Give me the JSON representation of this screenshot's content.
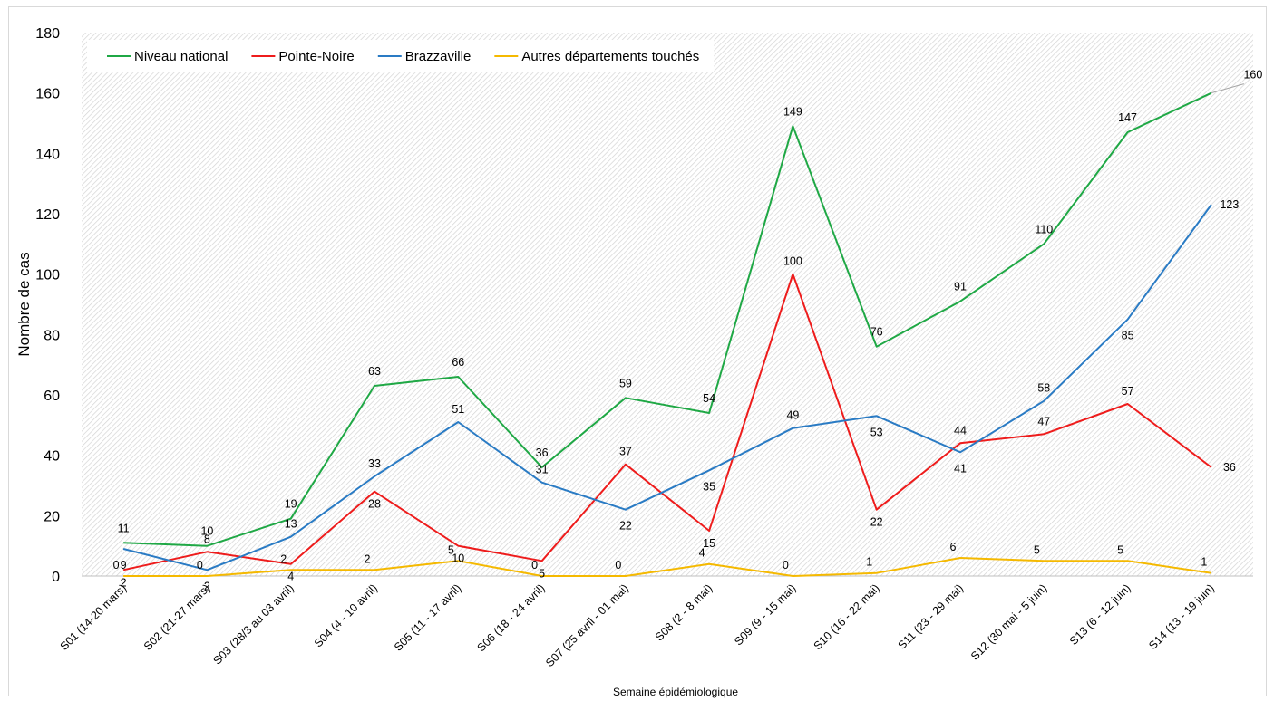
{
  "chart_data": {
    "type": "line",
    "xlabel": "Semaine épidémiologique",
    "ylabel": "Nombre de cas",
    "ylim": [
      0,
      180
    ],
    "yticks": [
      0,
      20,
      40,
      60,
      80,
      100,
      120,
      140,
      160,
      180
    ],
    "grid": false,
    "legend_position": "top-left",
    "categories": [
      "S01 (14-20 mars)",
      "S02 (21-27 mars)",
      "S03 (28/3 au 03 avril)",
      "S04 (4 - 10 avril)",
      "S05 (11 - 17 avril)",
      "S06 (18 - 24 avril)",
      "S07 (25 avril - 01 mai)",
      "S08 (2 - 8 mai)",
      "S09 (9 - 15 mai)",
      "S10 (16 - 22 mai)",
      "S11 (23 - 29 mai)",
      "S12 (30 mai - 5 juin)",
      "S13 (6 - 12 juin)",
      "S14 (13 - 19 juin)"
    ],
    "series": [
      {
        "name": "Niveau national",
        "color": "#1fa845",
        "values": [
          11,
          10,
          19,
          63,
          66,
          36,
          59,
          54,
          149,
          76,
          91,
          110,
          147,
          160
        ]
      },
      {
        "name": "Pointe-Noire",
        "color": "#ee1c1c",
        "values": [
          2,
          8,
          4,
          28,
          10,
          5,
          37,
          15,
          100,
          22,
          44,
          47,
          57,
          36
        ]
      },
      {
        "name": "Brazzaville",
        "color": "#2a7bc4",
        "values": [
          9,
          2,
          13,
          33,
          51,
          31,
          22,
          35,
          49,
          53,
          41,
          58,
          85,
          123
        ]
      },
      {
        "name": "Autres départements touchés",
        "color": "#f5b900",
        "values": [
          0,
          0,
          2,
          2,
          5,
          0,
          0,
          4,
          0,
          1,
          6,
          5,
          5,
          1
        ]
      }
    ]
  }
}
